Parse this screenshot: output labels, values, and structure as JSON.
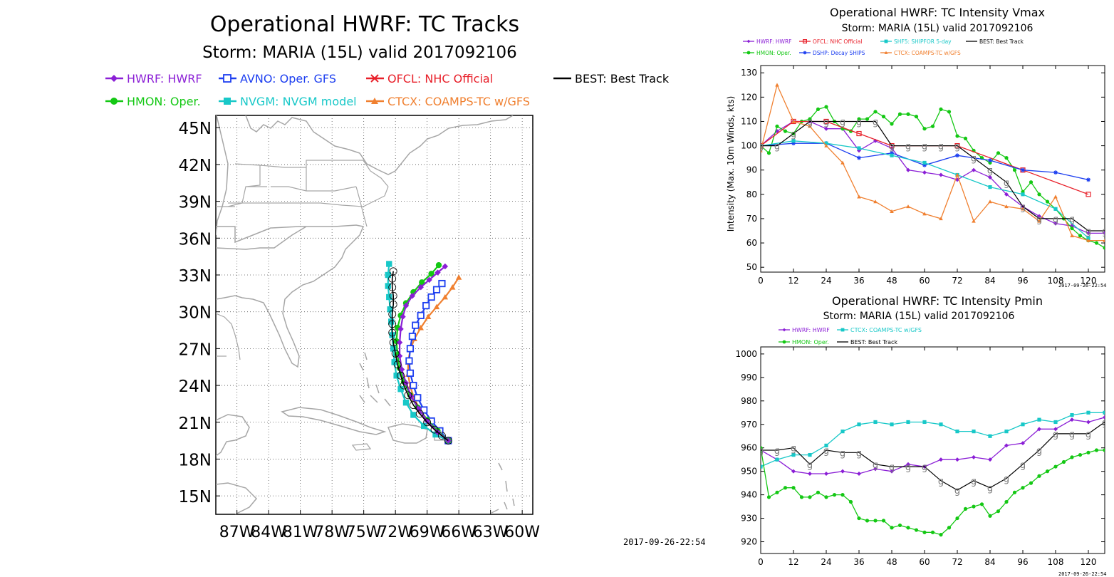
{
  "footer_stamp": "2017-09-26-22:54",
  "small_stamp": "2017-09-26-22:54",
  "tracks": {
    "title": "Operational HWRF: TC Tracks",
    "subtitle": "Storm: MARIA (15L) valid 2017092106",
    "legend": [
      {
        "label": "HWRF: HWRF",
        "color": "#8b1fd6",
        "marker": "diamond"
      },
      {
        "label": "AVNO: Oper. GFS",
        "color": "#1d3ff0",
        "marker": "square-open"
      },
      {
        "label": "OFCL: NHC Official",
        "color": "#e8202a",
        "marker": "x"
      },
      {
        "label": "BEST: Best Track",
        "color": "#000000",
        "marker": "none"
      },
      {
        "label": "HMON: Oper.",
        "color": "#14c814",
        "marker": "circle"
      },
      {
        "label": "NVGM: NVGM model",
        "color": "#18c8c8",
        "marker": "square"
      },
      {
        "label": "CTCX: COAMPS-TC w/GFS",
        "color": "#f08030",
        "marker": "triangle"
      }
    ],
    "lat_labels": [
      "45N",
      "42N",
      "39N",
      "36N",
      "33N",
      "30N",
      "27N",
      "24N",
      "21N",
      "18N",
      "15N"
    ],
    "lon_labels": [
      "87W",
      "84W",
      "81W",
      "78W",
      "75W",
      "72W",
      "69W",
      "66W",
      "63W",
      "60W"
    ]
  },
  "vmax": {
    "title": "Operational HWRF: TC Intensity Vmax",
    "subtitle": "Storm: MARIA (15L) valid 2017092106",
    "ylabel": "Intensity (Max. 10m Winds, kts)",
    "legend": [
      {
        "label": "HWRF: HWRF",
        "color": "#8b1fd6"
      },
      {
        "label": "OFCL: NHC Official",
        "color": "#e8202a"
      },
      {
        "label": "SHF5: SHIPFOR 5-day",
        "color": "#18c8c8"
      },
      {
        "label": "BEST: Best Track",
        "color": "#000000"
      },
      {
        "label": "HMON: Oper.",
        "color": "#14c814"
      },
      {
        "label": "DSHP: Decay SHIPS",
        "color": "#1d3ff0"
      },
      {
        "label": "CTCX: COAMPS-TC w/GFS",
        "color": "#f08030"
      }
    ],
    "yticks": [
      "50",
      "60",
      "70",
      "80",
      "90",
      "100",
      "110",
      "120",
      "130"
    ],
    "xticks": [
      "0",
      "12",
      "24",
      "36",
      "48",
      "60",
      "72",
      "84",
      "96",
      "108",
      "120"
    ]
  },
  "pmin": {
    "title": "Operational HWRF: TC Intensity Pmin",
    "subtitle": "Storm: MARIA (15L) valid 2017092106",
    "legend": [
      {
        "label": "HWRF: HWRF",
        "color": "#8b1fd6"
      },
      {
        "label": "CTCX: COAMPS-TC w/GFS",
        "color": "#18c8c8"
      },
      {
        "label": "HMON: Oper.",
        "color": "#14c814"
      },
      {
        "label": "BEST: Best Track",
        "color": "#000000"
      }
    ],
    "yticks": [
      "920",
      "930",
      "940",
      "950",
      "960",
      "970",
      "980",
      "990",
      "1000"
    ],
    "xticks": [
      "0",
      "12",
      "24",
      "36",
      "48",
      "60",
      "72",
      "84",
      "96",
      "108",
      "120"
    ]
  },
  "chart_data": [
    {
      "type": "line",
      "title": "Operational HWRF: TC Tracks",
      "subtitle": "Storm: MARIA (15L) valid 2017092106",
      "xlim": [
        -89,
        -59
      ],
      "ylim": [
        13.5,
        46
      ],
      "series": [
        {
          "name": "BEST: Best Track",
          "lon": [
            -67.0,
            -67.6,
            -68.3,
            -69.0,
            -69.7,
            -70.3,
            -70.8,
            -71.2,
            -71.5,
            -71.8,
            -72.0,
            -72.2,
            -72.3,
            -72.3,
            -72.3,
            -72.2,
            -72.2,
            -72.3,
            -72.3,
            -72.2
          ],
          "lat": [
            19.5,
            19.9,
            20.4,
            21.0,
            21.7,
            22.4,
            23.2,
            24.0,
            24.8,
            25.7,
            26.6,
            27.5,
            28.3,
            29.0,
            29.8,
            30.6,
            31.3,
            32.0,
            32.7,
            33.3
          ]
        },
        {
          "name": "HWRF: HWRF",
          "lon": [
            -67.0,
            -68.0,
            -69.0,
            -69.8,
            -70.5,
            -71.0,
            -71.4,
            -71.6,
            -71.6,
            -71.5,
            -71.3,
            -71.0,
            -70.4,
            -69.6,
            -68.8,
            -68.0,
            -67.3
          ],
          "lat": [
            19.5,
            20.2,
            21.1,
            22.1,
            23.1,
            24.2,
            25.3,
            26.4,
            27.5,
            28.6,
            29.6,
            30.5,
            31.3,
            32.0,
            32.6,
            33.2,
            33.7
          ]
        },
        {
          "name": "AVNO: Oper. GFS",
          "lon": [
            -67.0,
            -67.8,
            -68.6,
            -69.3,
            -69.9,
            -70.3,
            -70.6,
            -70.7,
            -70.6,
            -70.4,
            -70.1,
            -69.6,
            -69.1,
            -68.6,
            -68.1,
            -67.6
          ],
          "lat": [
            19.5,
            20.3,
            21.1,
            22.0,
            23.0,
            24.0,
            25.0,
            26.0,
            27.0,
            28.0,
            28.9,
            29.7,
            30.5,
            31.2,
            31.8,
            32.3
          ]
        },
        {
          "name": "HMON: Oper.",
          "lon": [
            -67.0,
            -68.0,
            -69.0,
            -69.9,
            -70.6,
            -71.2,
            -71.6,
            -71.8,
            -71.9,
            -71.8,
            -71.5,
            -71.0,
            -70.3,
            -69.5,
            -68.6,
            -67.9
          ],
          "lat": [
            19.5,
            20.3,
            21.2,
            22.2,
            23.2,
            24.3,
            25.4,
            26.5,
            27.6,
            28.7,
            29.7,
            30.7,
            31.6,
            32.4,
            33.1,
            33.8
          ]
        },
        {
          "name": "NVGM: NVGM model",
          "lon": [
            -67.0,
            -68.2,
            -69.3,
            -70.3,
            -71.0,
            -71.5,
            -71.9,
            -72.1,
            -72.2,
            -72.3,
            -72.4,
            -72.5,
            -72.6,
            -72.7,
            -72.7,
            -72.6
          ],
          "lat": [
            19.5,
            20.0,
            20.7,
            21.6,
            22.6,
            23.7,
            24.8,
            25.9,
            27.0,
            28.1,
            29.2,
            30.2,
            31.2,
            32.1,
            33.0,
            33.9
          ]
        },
        {
          "name": "CTCX: COAMPS-TC w/GFS",
          "lon": [
            -67.0,
            -67.9,
            -68.8,
            -69.6,
            -70.2,
            -70.6,
            -70.8,
            -70.8,
            -70.6,
            -70.2,
            -69.6,
            -68.9,
            -68.1,
            -67.3,
            -66.6,
            -66.0
          ],
          "lat": [
            19.5,
            20.2,
            21.0,
            21.9,
            22.9,
            23.9,
            24.9,
            25.9,
            26.9,
            27.8,
            28.7,
            29.6,
            30.4,
            31.2,
            32.0,
            32.8
          ]
        }
      ]
    },
    {
      "type": "line",
      "title": "Operational HWRF: TC Intensity Vmax",
      "subtitle": "Storm: MARIA (15L) valid 2017092106",
      "ylabel": "Intensity (Max. 10m Winds, kts)",
      "xlim": [
        0,
        126
      ],
      "ylim": [
        48,
        133
      ],
      "series": [
        {
          "name": "HWRF: HWRF",
          "x": [
            0,
            6,
            12,
            18,
            24,
            30,
            36,
            42,
            48,
            54,
            60,
            66,
            72,
            78,
            84,
            90,
            96,
            102,
            108,
            114,
            120,
            126
          ],
          "y": [
            100,
            106,
            110,
            110,
            107,
            107,
            98,
            102,
            99,
            90,
            89,
            88,
            86,
            90,
            87,
            80,
            75,
            71,
            68,
            67,
            64,
            64
          ]
        },
        {
          "name": "HMON: Oper.",
          "x": [
            0,
            3,
            6,
            9,
            12,
            15,
            18,
            21,
            24,
            27,
            30,
            33,
            36,
            39,
            42,
            45,
            48,
            51,
            54,
            57,
            60,
            63,
            66,
            69,
            72,
            75,
            78,
            81,
            84,
            87,
            90,
            93,
            96,
            99,
            102,
            105,
            108,
            111,
            114,
            117,
            120,
            123,
            126
          ],
          "y": [
            100,
            97,
            108,
            106,
            105,
            110,
            111,
            115,
            116,
            110,
            107,
            106,
            111,
            111,
            114,
            112,
            109,
            113,
            113,
            112,
            107,
            108,
            115,
            114,
            104,
            103,
            98,
            95,
            93,
            97,
            95,
            90,
            81,
            85,
            80,
            77,
            74,
            70,
            66,
            63,
            61,
            60,
            58
          ]
        },
        {
          "name": "OFCL: NHC Official",
          "x": [
            0,
            12,
            24,
            36,
            48,
            72,
            96,
            120
          ],
          "y": [
            100,
            110,
            110,
            105,
            100,
            100,
            90,
            80
          ]
        },
        {
          "name": "DSHP: Decay SHIPS",
          "x": [
            0,
            12,
            24,
            36,
            48,
            60,
            72,
            84,
            96,
            108,
            120
          ],
          "y": [
            100,
            101,
            101,
            95,
            97,
            92,
            96,
            94,
            90,
            89,
            86
          ]
        },
        {
          "name": "SHF5: SHIPFOR 5-day",
          "x": [
            0,
            12,
            24,
            36,
            48,
            60,
            72,
            84,
            96,
            108,
            120
          ],
          "y": [
            100,
            102,
            101,
            99,
            96,
            93,
            88,
            83,
            80,
            74,
            62
          ]
        },
        {
          "name": "CTCX: COAMPS-TC w/GFS",
          "x": [
            0,
            6,
            12,
            18,
            24,
            30,
            36,
            42,
            48,
            54,
            60,
            66,
            72,
            78,
            84,
            90,
            96,
            102,
            108,
            114,
            120,
            126
          ],
          "y": [
            98,
            125,
            110,
            108,
            100,
            93,
            79,
            77,
            73,
            75,
            72,
            70,
            88,
            69,
            77,
            75,
            74,
            69,
            79,
            63,
            61,
            61
          ]
        },
        {
          "name": "BEST: Best Track",
          "x": [
            0,
            6,
            12,
            18,
            24,
            30,
            36,
            42,
            48,
            54,
            60,
            66,
            72,
            78,
            84,
            90,
            96,
            102,
            108,
            114,
            120,
            126
          ],
          "y": [
            100,
            100,
            105,
            110,
            110,
            110,
            110,
            110,
            100,
            100,
            100,
            100,
            100,
            95,
            90,
            85,
            75,
            70,
            70,
            70,
            65,
            65
          ]
        }
      ]
    },
    {
      "type": "line",
      "title": "Operational HWRF: TC Intensity Pmin",
      "subtitle": "Storm: MARIA (15L) valid 2017092106",
      "xlim": [
        0,
        126
      ],
      "ylim": [
        915,
        1003
      ],
      "series": [
        {
          "name": "HWRF: HWRF",
          "x": [
            0,
            6,
            12,
            18,
            24,
            30,
            36,
            42,
            48,
            54,
            60,
            66,
            72,
            78,
            84,
            90,
            96,
            102,
            108,
            114,
            120,
            126
          ],
          "y": [
            959,
            955,
            950,
            949,
            949,
            950,
            949,
            951,
            950,
            953,
            952,
            955,
            955,
            956,
            955,
            961,
            962,
            968,
            968,
            972,
            971,
            973
          ]
        },
        {
          "name": "CTCX: COAMPS-TC w/GFS",
          "x": [
            0,
            6,
            12,
            18,
            24,
            30,
            36,
            42,
            48,
            54,
            60,
            66,
            72,
            78,
            84,
            90,
            96,
            102,
            108,
            114,
            120,
            126
          ],
          "y": [
            952,
            955,
            957,
            957,
            961,
            967,
            970,
            971,
            970,
            971,
            971,
            970,
            967,
            967,
            965,
            967,
            970,
            972,
            971,
            974,
            975,
            975
          ]
        },
        {
          "name": "HMON: Oper.",
          "x": [
            0,
            3,
            6,
            9,
            12,
            15,
            18,
            21,
            24,
            27,
            30,
            33,
            36,
            39,
            42,
            45,
            48,
            51,
            54,
            57,
            60,
            63,
            66,
            69,
            72,
            75,
            78,
            81,
            84,
            87,
            90,
            93,
            96,
            99,
            102,
            105,
            108,
            111,
            114,
            117,
            120,
            123,
            126
          ],
          "y": [
            960,
            939,
            941,
            943,
            943,
            939,
            939,
            941,
            939,
            940,
            940,
            937,
            930,
            929,
            929,
            929,
            926,
            927,
            926,
            925,
            924,
            924,
            923,
            926,
            930,
            934,
            935,
            936,
            931,
            933,
            937,
            941,
            943,
            945,
            948,
            950,
            952,
            954,
            956,
            957,
            958,
            959,
            959
          ]
        },
        {
          "name": "BEST: Best Track",
          "x": [
            0,
            6,
            12,
            18,
            24,
            30,
            36,
            42,
            48,
            54,
            60,
            66,
            72,
            78,
            84,
            90,
            96,
            102,
            108,
            114,
            120,
            126
          ],
          "y": [
            959,
            959,
            960,
            953,
            959,
            958,
            958,
            953,
            952,
            952,
            952,
            946,
            942,
            946,
            943,
            947,
            953,
            959,
            966,
            966,
            966,
            971
          ]
        }
      ]
    }
  ]
}
